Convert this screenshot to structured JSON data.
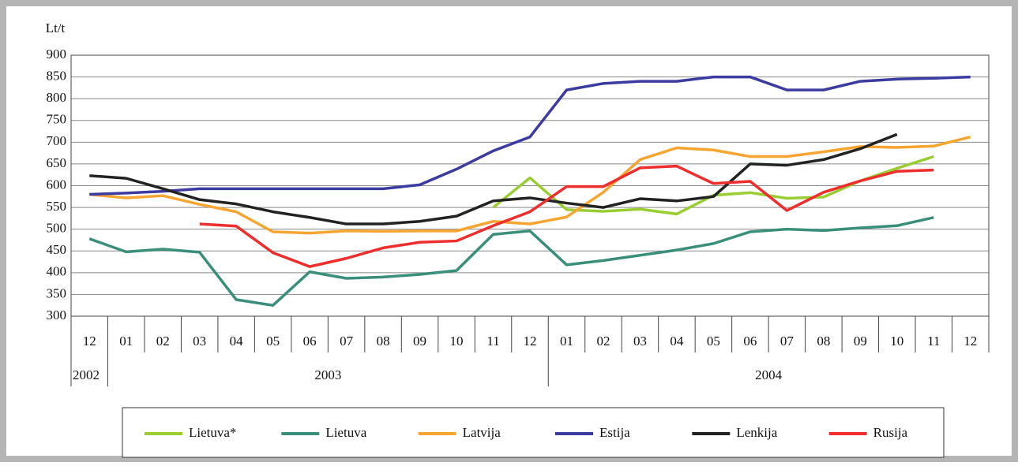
{
  "chart_data": {
    "type": "line",
    "ylabel": "Lt/t",
    "categories": [
      "12",
      "01",
      "02",
      "03",
      "04",
      "05",
      "06",
      "07",
      "08",
      "09",
      "10",
      "11",
      "12",
      "01",
      "02",
      "03",
      "04",
      "05",
      "06",
      "07",
      "08",
      "09",
      "10",
      "11",
      "12"
    ],
    "years": [
      {
        "label": "2002",
        "months": 1
      },
      {
        "label": "2003",
        "months": 12
      },
      {
        "label": "2004",
        "months": 12
      }
    ],
    "ylim": [
      300,
      900
    ],
    "yticks": [
      300,
      350,
      400,
      450,
      500,
      550,
      600,
      650,
      700,
      750,
      800,
      850,
      900
    ],
    "grid": true,
    "series": [
      {
        "name": "Lietuva*",
        "color": "#9acd32",
        "values": [
          null,
          null,
          null,
          null,
          null,
          null,
          null,
          null,
          null,
          null,
          null,
          550,
          618,
          545,
          541,
          546,
          535,
          578,
          584,
          571,
          574,
          611,
          640,
          667,
          null
        ]
      },
      {
        "name": "Lietuva",
        "color": "#3a8f7a",
        "values": [
          478,
          448,
          454,
          447,
          338,
          325,
          402,
          387,
          390,
          396,
          405,
          488,
          496,
          418,
          428,
          440,
          452,
          467,
          494,
          500,
          497,
          503,
          508,
          527,
          null
        ]
      },
      {
        "name": "Latvija",
        "color": "#f7a531",
        "values": [
          580,
          572,
          577,
          557,
          540,
          494,
          491,
          496,
          495,
          496,
          496,
          518,
          512,
          528,
          585,
          660,
          687,
          682,
          667,
          667,
          678,
          690,
          688,
          691,
          712
        ]
      },
      {
        "name": "Estija",
        "color": "#3b3ba0",
        "values": [
          580,
          583,
          587,
          593,
          593,
          593,
          593,
          593,
          593,
          602,
          638,
          680,
          712,
          820,
          835,
          840,
          840,
          850,
          850,
          820,
          820,
          840,
          845,
          847,
          850
        ]
      },
      {
        "name": "Lenkija",
        "color": "#222222",
        "values": [
          623,
          617,
          593,
          568,
          558,
          540,
          527,
          512,
          512,
          518,
          530,
          565,
          572,
          560,
          550,
          570,
          565,
          575,
          650,
          647,
          660,
          685,
          718,
          null,
          null
        ]
      },
      {
        "name": "Rusija",
        "color": "#ee2d2d",
        "values": [
          null,
          null,
          null,
          512,
          507,
          446,
          414,
          433,
          457,
          470,
          473,
          508,
          540,
          598,
          598,
          641,
          645,
          605,
          610,
          543,
          585,
          611,
          633,
          636,
          null
        ]
      }
    ]
  }
}
